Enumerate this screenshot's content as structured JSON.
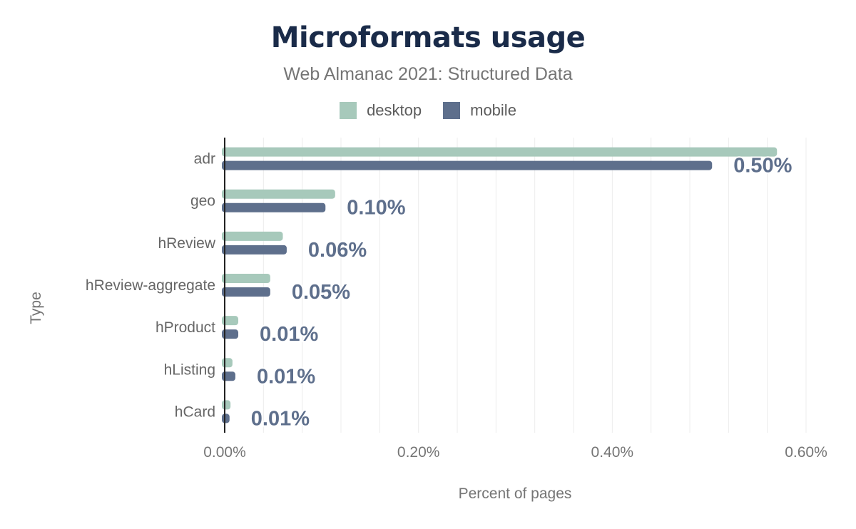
{
  "chart_data": {
    "type": "bar",
    "orientation": "horizontal",
    "title": "Microformats usage",
    "subtitle": "Web Almanac 2021: Structured Data",
    "xlabel": "Percent of pages",
    "ylabel": "Type",
    "categories": [
      "adr",
      "geo",
      "hReview",
      "hReview-aggregate",
      "hProduct",
      "hListing",
      "hCard"
    ],
    "series": [
      {
        "name": "desktop",
        "color": "#a7c9bb",
        "values": [
          0.57,
          0.114,
          0.06,
          0.047,
          0.014,
          0.008,
          0.006
        ]
      },
      {
        "name": "mobile",
        "color": "#5e6f8c",
        "values": [
          0.503,
          0.104,
          0.064,
          0.047,
          0.014,
          0.011,
          0.005
        ]
      }
    ],
    "data_labels": [
      "0.50%",
      "0.10%",
      "0.06%",
      "0.05%",
      "0.01%",
      "0.01%",
      "0.01%"
    ],
    "xlim": [
      0,
      0.6
    ],
    "xticks": [
      0,
      0.2,
      0.4,
      0.6
    ],
    "xtick_labels": [
      "0.00%",
      "0.20%",
      "0.40%",
      "0.60%"
    ],
    "grid": true,
    "legend_position": "top-center"
  }
}
